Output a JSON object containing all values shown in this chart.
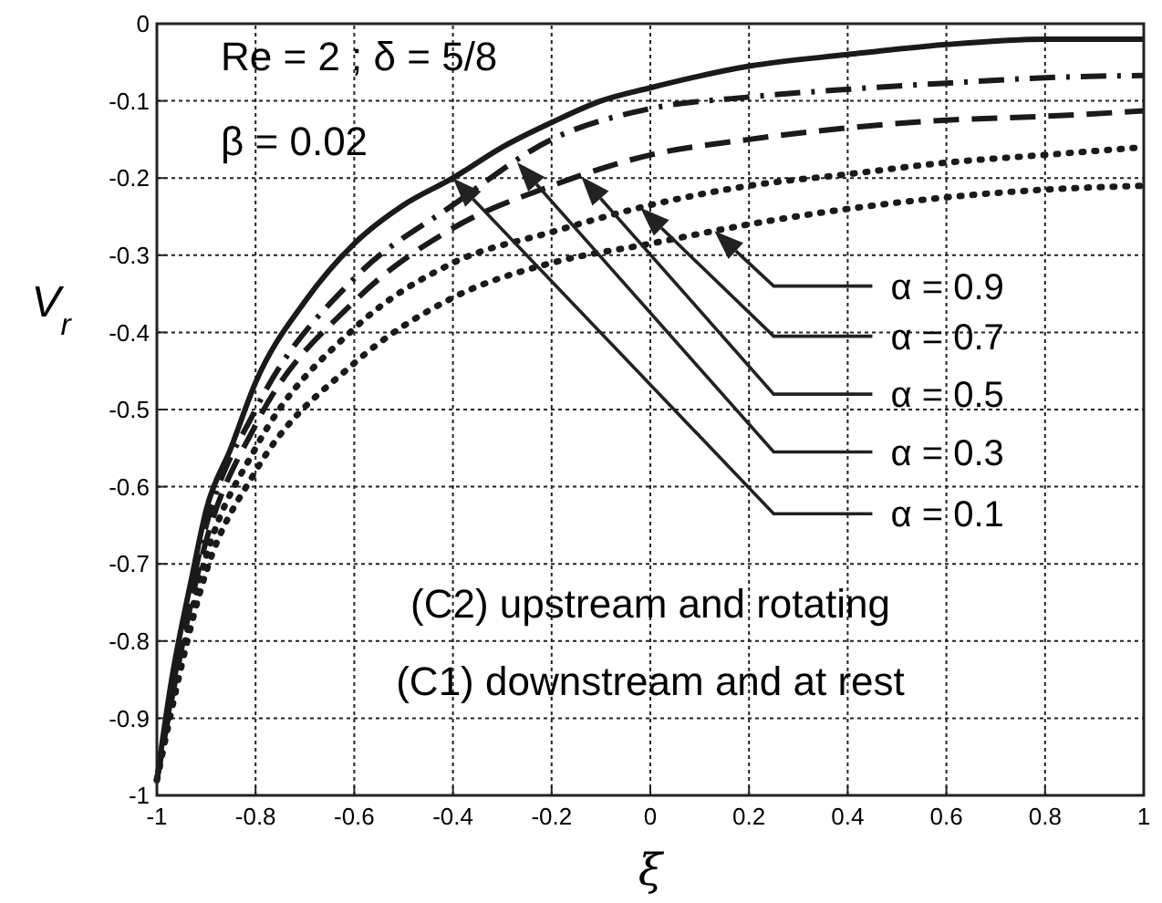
{
  "chart_data": {
    "type": "line",
    "xlabel": "ξ",
    "ylabel": "V$_{r}$",
    "series": [
      {
        "color": "#1a1a1a",
        "line_style": "solid",
        "x": [
          -1,
          -0.97,
          -0.93,
          -0.9,
          -0.85,
          -0.8,
          -0.7,
          -0.6,
          -0.5,
          -0.4,
          -0.3,
          -0.2,
          -0.1,
          0,
          0.2,
          0.4,
          0.6,
          0.8,
          1
        ],
        "values": [
          -0.98,
          -0.85,
          -0.72,
          -0.63,
          -0.55,
          -0.465,
          -0.36,
          -0.285,
          -0.235,
          -0.2,
          -0.16,
          -0.128,
          -0.1,
          -0.083,
          -0.055,
          -0.04,
          -0.027,
          -0.02,
          -0.02
        ]
      },
      {
        "color": "#1a1a1a",
        "line_style": "dashdot",
        "x": [
          -1,
          -0.9,
          -0.8,
          -0.6,
          -0.4,
          -0.2,
          0,
          0.2,
          0.4,
          0.6,
          0.8,
          1
        ],
        "values": [
          -0.98,
          -0.65,
          -0.5,
          -0.33,
          -0.235,
          -0.15,
          -0.11,
          -0.095,
          -0.085,
          -0.077,
          -0.07,
          -0.067
        ]
      },
      {
        "color": "#1a1a1a",
        "line_style": "dashed",
        "x": [
          -1,
          -0.9,
          -0.8,
          -0.6,
          -0.4,
          -0.2,
          0,
          0.2,
          0.4,
          0.6,
          0.8,
          1
        ],
        "values": [
          -0.98,
          -0.67,
          -0.52,
          -0.36,
          -0.265,
          -0.21,
          -0.17,
          -0.15,
          -0.135,
          -0.125,
          -0.12,
          -0.113
        ]
      },
      {
        "color": "#1a1a1a",
        "line_style": "dotted",
        "x": [
          -1,
          -0.9,
          -0.8,
          -0.6,
          -0.4,
          -0.2,
          0,
          0.2,
          0.4,
          0.6,
          0.8,
          1
        ],
        "values": [
          -0.98,
          -0.69,
          -0.55,
          -0.395,
          -0.31,
          -0.27,
          -0.235,
          -0.21,
          -0.195,
          -0.18,
          -0.17,
          -0.16
        ]
      },
      {
        "color": "#1a1a1a",
        "line_style": "dotted",
        "x": [
          -1,
          -0.9,
          -0.8,
          -0.6,
          -0.4,
          -0.2,
          0,
          0.2,
          0.4,
          0.6,
          0.8,
          1
        ],
        "values": [
          -0.98,
          -0.71,
          -0.58,
          -0.44,
          -0.355,
          -0.31,
          -0.285,
          -0.26,
          -0.24,
          -0.225,
          -0.215,
          -0.21
        ]
      }
    ],
    "xlim": [
      -1,
      1
    ],
    "ylim": [
      -1,
      0
    ],
    "xticks": [
      -1,
      -0.8,
      -0.6,
      -0.4,
      -0.2,
      0,
      0.2,
      0.4,
      0.6,
      0.8,
      1
    ],
    "yticks": [
      -1,
      -0.9,
      -0.8,
      -0.7,
      -0.6,
      -0.5,
      -0.4,
      -0.3,
      -0.2,
      -0.1,
      0
    ],
    "grid": true,
    "annotations": [
      "α = 0.9",
      "α = 0.7",
      "α = 0.5",
      "α = 0.3",
      "α = 0.1",
      "Re = 2 ; δ = 5/8",
      "β = 0.02",
      "(C2) upstream and rotating",
      "(C1) downstream and at rest"
    ]
  }
}
